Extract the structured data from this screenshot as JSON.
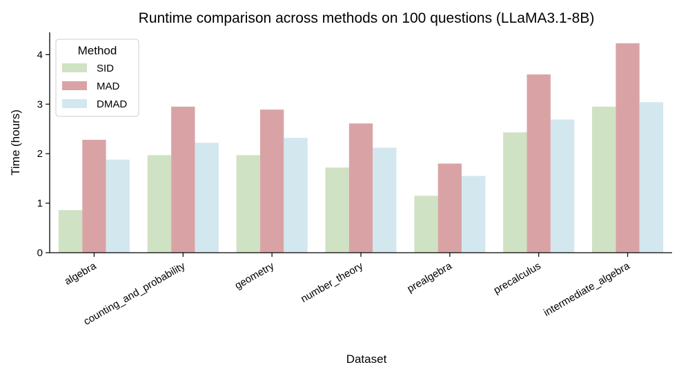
{
  "chart_data": {
    "type": "bar",
    "title": "Runtime comparison across methods on 100 questions (LLaMA3.1-8B)",
    "xlabel": "Dataset",
    "ylabel": "Time (hours)",
    "ylim": [
      0,
      4.45
    ],
    "yticks": [
      0,
      1,
      2,
      3,
      4
    ],
    "grid": false,
    "legend": {
      "title": "Method",
      "position": "top-left"
    },
    "categories": [
      "algebra",
      "counting_and_probability",
      "geometry",
      "number_theory",
      "prealgebra",
      "precalculus",
      "intermediate_algebra"
    ],
    "series": [
      {
        "name": "SID",
        "color": "#cfe2c3",
        "values": [
          0.86,
          1.97,
          1.97,
          1.72,
          1.15,
          2.43,
          2.95
        ]
      },
      {
        "name": "MAD",
        "color": "#d9a3a5",
        "values": [
          2.28,
          2.95,
          2.89,
          2.61,
          1.8,
          3.6,
          4.23
        ]
      },
      {
        "name": "DMAD",
        "color": "#d3e7ef",
        "values": [
          1.88,
          2.22,
          2.32,
          2.12,
          1.55,
          2.69,
          3.04
        ]
      }
    ]
  }
}
